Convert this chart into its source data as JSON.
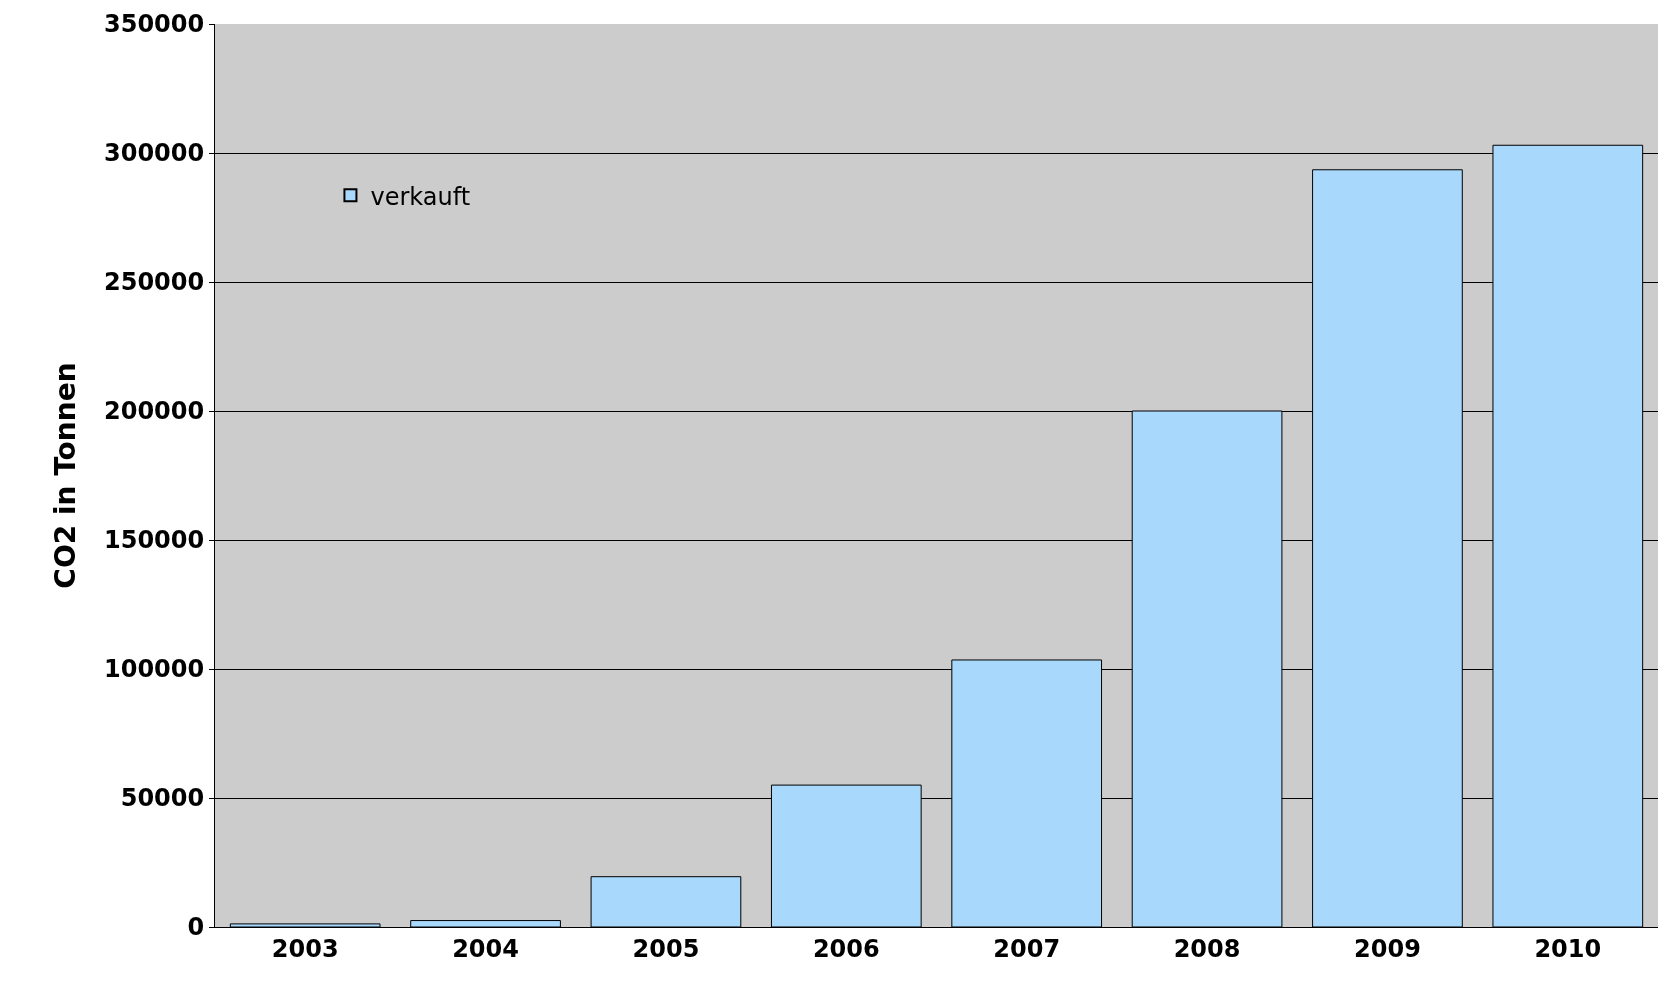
{
  "chart_data": {
    "type": "bar",
    "ylabel": "CO2 in Tonnen",
    "categories": [
      "2003",
      "2004",
      "2005",
      "2006",
      "2007",
      "2008",
      "2009",
      "2010"
    ],
    "series": [
      {
        "name": "verkauft",
        "color": "#a9d8fd",
        "values": [
          1200,
          2500,
          19500,
          55000,
          103500,
          200000,
          293500,
          303000
        ]
      }
    ],
    "ylim": [
      0,
      350000
    ],
    "yticks": [
      0,
      50000,
      100000,
      150000,
      200000,
      250000,
      300000,
      350000
    ],
    "grid": "y",
    "legend": "top left"
  }
}
